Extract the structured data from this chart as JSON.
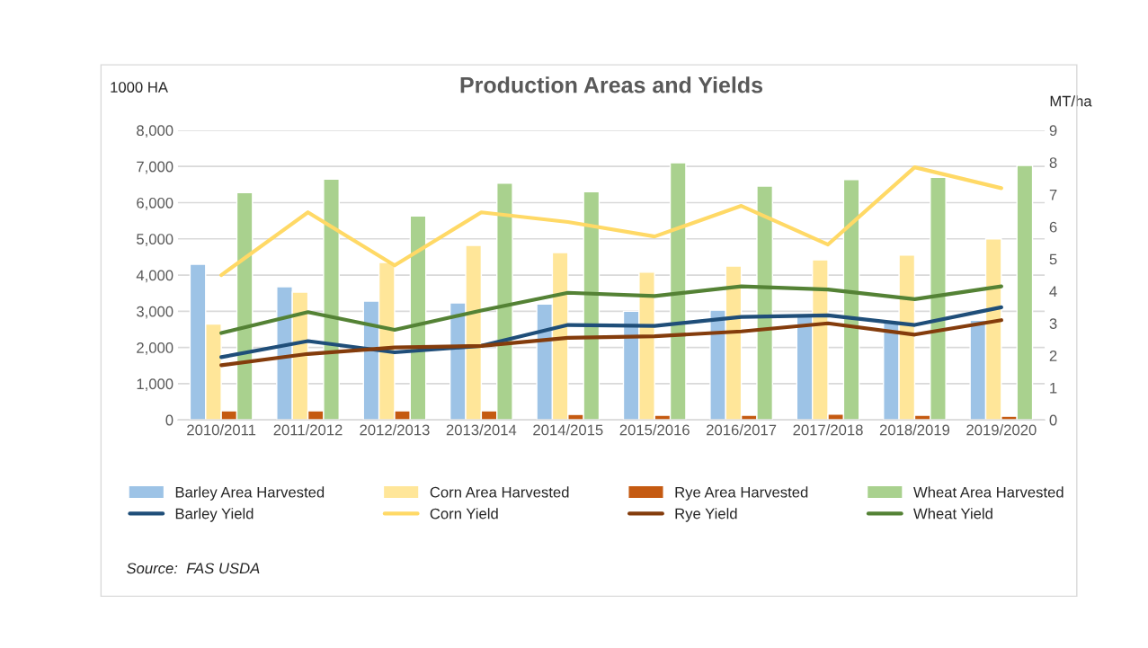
{
  "chart_data": {
    "type": "bar",
    "title": "Production Areas and Yields",
    "ylabel": "1000 HA",
    "y2label": "MT/ha",
    "categories": [
      "2010/2011",
      "2011/2012",
      "2012/2013",
      "2013/2014",
      "2014/2015",
      "2015/2016",
      "2016/2017",
      "2017/2018",
      "2018/2019",
      "2019/2020"
    ],
    "series": [
      {
        "name": "Barley Area Harvested",
        "color": "#9dc3e6",
        "values": [
          4300,
          3680,
          3280,
          3230,
          3200,
          3000,
          3030,
          2900,
          2700,
          2750
        ]
      },
      {
        "name": "Corn Area Harvested",
        "color": "#ffe699",
        "values": [
          2650,
          3530,
          4350,
          4820,
          4620,
          4080,
          4250,
          4420,
          4550,
          5000
        ]
      },
      {
        "name": "Rye Area Harvested",
        "color": "#c55a11",
        "values": [
          250,
          250,
          250,
          250,
          150,
          130,
          130,
          160,
          130,
          100
        ]
      },
      {
        "name": "Wheat Area Harvested",
        "color": "#a9d18e",
        "values": [
          6280,
          6650,
          5630,
          6540,
          6300,
          7100,
          6460,
          6640,
          6700,
          7030
        ]
      },
      {
        "name": "Barley Yield",
        "type": "line",
        "axis": "y2",
        "color": "#1f4e79",
        "values": [
          1.95,
          2.45,
          2.1,
          2.3,
          2.95,
          2.92,
          3.2,
          3.25,
          2.95,
          3.5
        ]
      },
      {
        "name": "Corn Yield",
        "type": "line",
        "axis": "y2",
        "color": "#ffd966",
        "values": [
          4.5,
          6.45,
          4.8,
          6.45,
          6.15,
          5.7,
          6.65,
          5.45,
          7.85,
          7.2
        ]
      },
      {
        "name": "Rye Yield",
        "type": "line",
        "axis": "y2",
        "color": "#843c0c",
        "values": [
          1.7,
          2.05,
          2.25,
          2.3,
          2.55,
          2.6,
          2.75,
          3.0,
          2.65,
          3.1
        ]
      },
      {
        "name": "Wheat Yield",
        "type": "line",
        "axis": "y2",
        "color": "#548235",
        "values": [
          2.7,
          3.35,
          2.8,
          3.4,
          3.95,
          3.85,
          4.15,
          4.05,
          3.75,
          4.15
        ]
      }
    ],
    "ylim": [
      0,
      8000
    ],
    "yticks": [
      {
        "value": 0,
        "label": "0"
      },
      {
        "value": 1000,
        "label": "1,000"
      },
      {
        "value": 2000,
        "label": "2,000"
      },
      {
        "value": 3000,
        "label": "3,000"
      },
      {
        "value": 4000,
        "label": "4,000"
      },
      {
        "value": 5000,
        "label": "5,000"
      },
      {
        "value": 6000,
        "label": "6,000"
      },
      {
        "value": 7000,
        "label": "7,000"
      },
      {
        "value": 8000,
        "label": "8,000"
      }
    ],
    "y2lim": [
      0,
      9
    ],
    "y2ticks": [
      0,
      1,
      2,
      3,
      4,
      5,
      6,
      7,
      8,
      9
    ],
    "grid": "y",
    "legend": "bottom",
    "annotations": [
      "Source:  FAS USDA"
    ]
  }
}
